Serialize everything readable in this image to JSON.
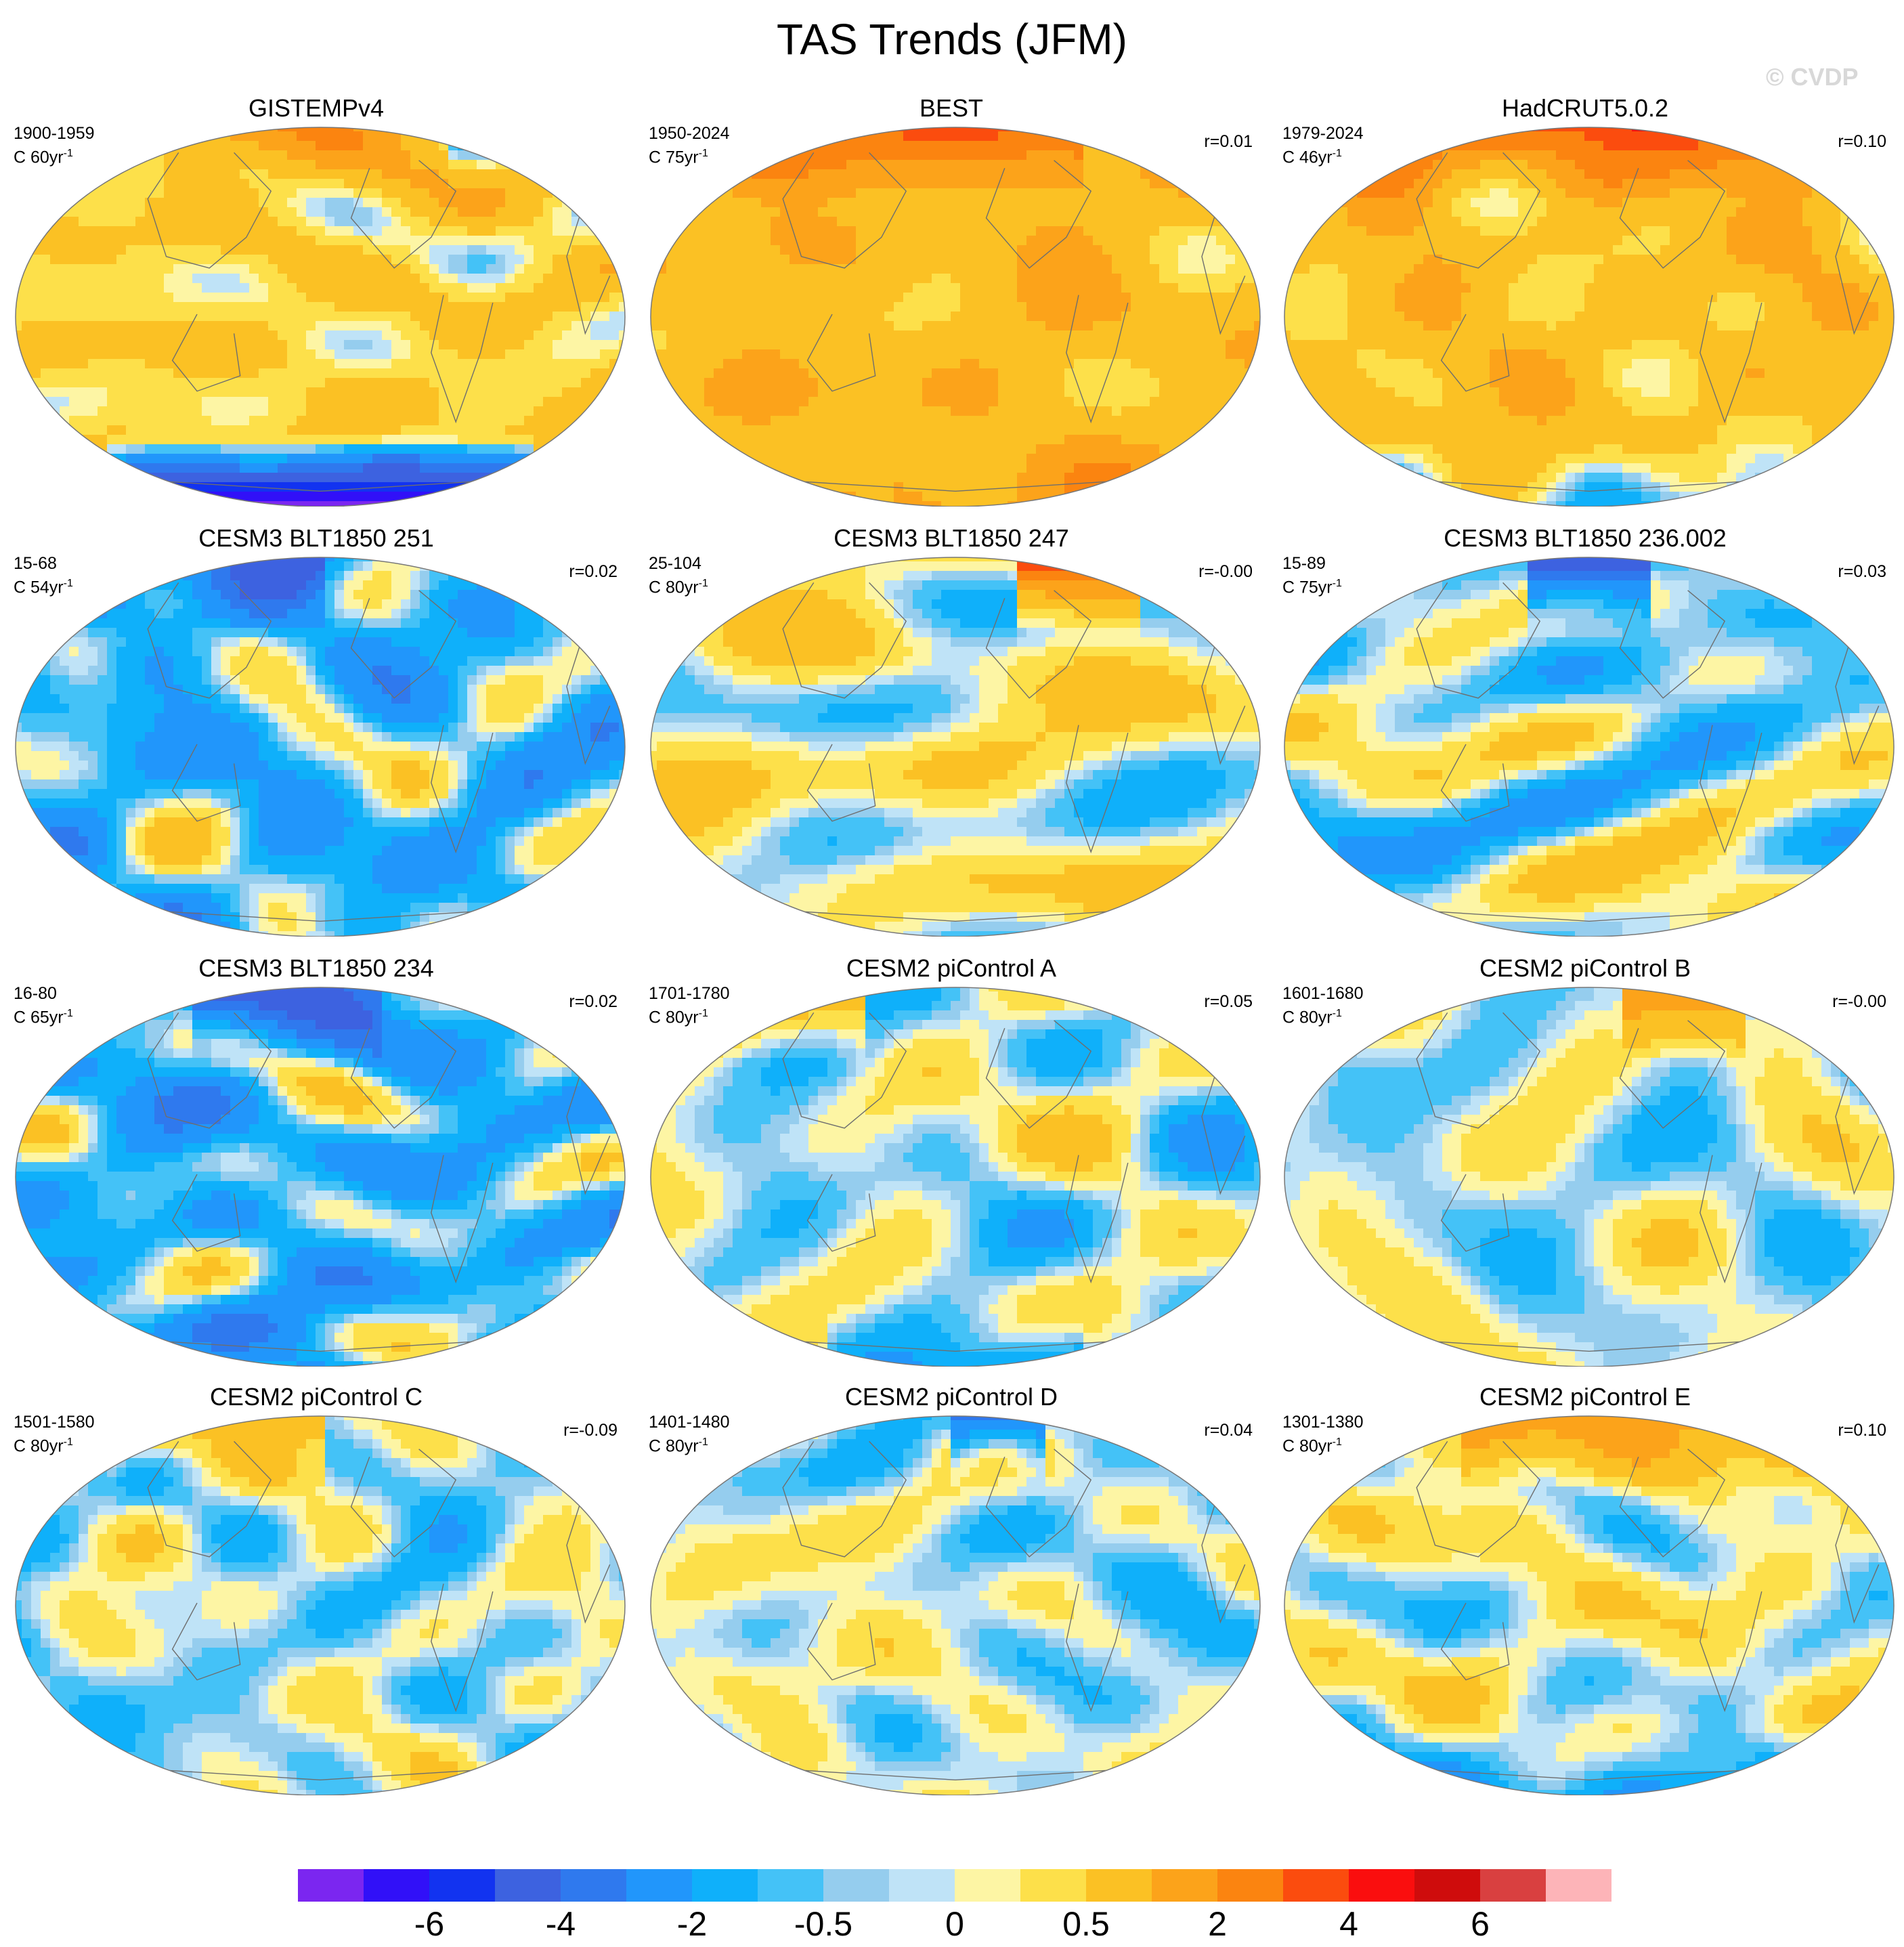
{
  "title": "TAS Trends (JFM)",
  "watermark": "© CVDP",
  "panels": [
    {
      "title": "GISTEMPv4",
      "period": "1900-1959",
      "units_base": "C 60yr",
      "units_exp": "-1",
      "r": "",
      "anomaly": {
        "base": 0.9,
        "north_lon": [
          0.25,
          0.7
        ],
        "north": 2.5,
        "south_lon": [
          0.15,
          0.85
        ],
        "south": -6.5,
        "amp": 0.9
      }
    },
    {
      "title": "BEST",
      "period": "1950-2024",
      "units_base": "C 75yr",
      "units_exp": "-1",
      "r": "r=0.01",
      "anomaly": {
        "base": 1.6,
        "north_lon": [
          0.0,
          0.7
        ],
        "north": 4.5,
        "south_lon": [
          0.4,
          0.8
        ],
        "south": 2.5,
        "amp": 0.8
      }
    },
    {
      "title": "HadCRUT5.0.2",
      "period": "1979-2024",
      "units_base": "C 46yr",
      "units_exp": "-1",
      "r": "r=0.10",
      "anomaly": {
        "base": 1.4,
        "north_lon": [
          0.0,
          1.0
        ],
        "north": 4.5,
        "south_lon": [
          0.0,
          1.0
        ],
        "south": -0.3,
        "amp": 0.9
      }
    },
    {
      "title": "CESM3 BLT1850 251",
      "period": "15-68",
      "units_base": "C 54yr",
      "units_exp": "-1",
      "r": "r=0.02",
      "anomaly": {
        "base": -0.5,
        "north_lon": [
          0.1,
          0.5
        ],
        "north": -3.0,
        "south_lon": [
          0.0,
          1.0
        ],
        "south": -0.5,
        "amp": 1.1
      }
    },
    {
      "title": "CESM3 BLT1850 247",
      "period": "25-104",
      "units_base": "C 80yr",
      "units_exp": "-1",
      "r": "r=-0.00",
      "anomaly": {
        "base": 0.4,
        "north_lon": [
          0.6,
          0.8
        ],
        "north": 5.5,
        "south_lon": [
          0.0,
          1.0
        ],
        "south": 0.3,
        "amp": 1.0
      }
    },
    {
      "title": "CESM3 BLT1850 236.002",
      "period": "15-89",
      "units_base": "C 75yr",
      "units_exp": "-1",
      "r": "r=0.03",
      "anomaly": {
        "base": 0.0,
        "north_lon": [
          0.4,
          0.6
        ],
        "north": -3.5,
        "south_lon": [
          0.0,
          1.0
        ],
        "south": 0.4,
        "amp": 1.1
      }
    },
    {
      "title": "CESM3 BLT1850 234",
      "period": "16-80",
      "units_base": "C 65yr",
      "units_exp": "-1",
      "r": "r=0.02",
      "anomaly": {
        "base": -0.6,
        "north_lon": [
          0.3,
          0.6
        ],
        "north": -3.0,
        "south_lon": [
          0.0,
          1.0
        ],
        "south": -1.0,
        "amp": 1.2
      }
    },
    {
      "title": "CESM2 piControl A",
      "period": "1701-1780",
      "units_base": "C 80yr",
      "units_exp": "-1",
      "r": "r=0.05",
      "anomaly": {
        "base": 0.1,
        "north_lon": [
          0.05,
          0.35
        ],
        "north": 2.5,
        "south_lon": [
          0.3,
          0.7
        ],
        "south": -0.8,
        "amp": 0.8
      }
    },
    {
      "title": "CESM2 piControl B",
      "period": "1601-1680",
      "units_base": "C 80yr",
      "units_exp": "-1",
      "r": "r=-0.00",
      "anomaly": {
        "base": 0.1,
        "north_lon": [
          0.55,
          0.75
        ],
        "north": 3.0,
        "south_lon": [
          0.0,
          1.0
        ],
        "south": 0.3,
        "amp": 0.8
      }
    },
    {
      "title": "CESM2 piControl C",
      "period": "1501-1580",
      "units_base": "C 80yr",
      "units_exp": "-1",
      "r": "r=-0.09",
      "anomaly": {
        "base": 0.0,
        "north_lon": [
          0.15,
          0.5
        ],
        "north": 1.8,
        "south_lon": [
          0.0,
          1.0
        ],
        "south": 0.2,
        "amp": 0.7
      }
    },
    {
      "title": "CESM2 piControl D",
      "period": "1401-1480",
      "units_base": "C 80yr",
      "units_exp": "-1",
      "r": "r=0.04",
      "anomaly": {
        "base": 0.1,
        "north_lon": [
          0.5,
          0.65
        ],
        "north": -2.0,
        "south_lon": [
          0.0,
          1.0
        ],
        "south": 0.2,
        "amp": 0.7
      }
    },
    {
      "title": "CESM2 piControl E",
      "period": "1301-1380",
      "units_base": "C 80yr",
      "units_exp": "-1",
      "r": "r=0.10",
      "anomaly": {
        "base": 0.3,
        "north_lon": [
          0.3,
          0.9
        ],
        "north": 2.8,
        "south_lon": [
          0.0,
          1.0
        ],
        "south": -1.0,
        "amp": 0.7
      }
    }
  ],
  "colorbar": {
    "colors": [
      "#7b26f0",
      "#3110f8",
      "#1233f0",
      "#3d62e0",
      "#2f79ee",
      "#2196fb",
      "#0fb0fa",
      "#44c2f7",
      "#95cdee",
      "#bfe3f7",
      "#fdf5a4",
      "#fde04a",
      "#fbc124",
      "#fca31a",
      "#fb8410",
      "#fb4c0e",
      "#fa0e0e",
      "#cf0c0c",
      "#d94040",
      "#fdb4b8"
    ],
    "levels": [
      -8,
      -6,
      -5,
      -4,
      -3,
      -2,
      -1,
      -0.5,
      -0.2,
      0,
      0.2,
      0.5,
      1,
      2,
      3,
      4,
      5,
      6,
      7,
      8
    ],
    "labels": [
      {
        "text": "-6",
        "boundary": 2
      },
      {
        "text": "-4",
        "boundary": 4
      },
      {
        "text": "-2",
        "boundary": 6
      },
      {
        "text": "-0.5",
        "boundary": 8
      },
      {
        "text": "0",
        "boundary": 10
      },
      {
        "text": "0.5",
        "boundary": 12
      },
      {
        "text": "2",
        "boundary": 14
      },
      {
        "text": "4",
        "boundary": 16
      },
      {
        "text": "6",
        "boundary": 18
      }
    ]
  }
}
